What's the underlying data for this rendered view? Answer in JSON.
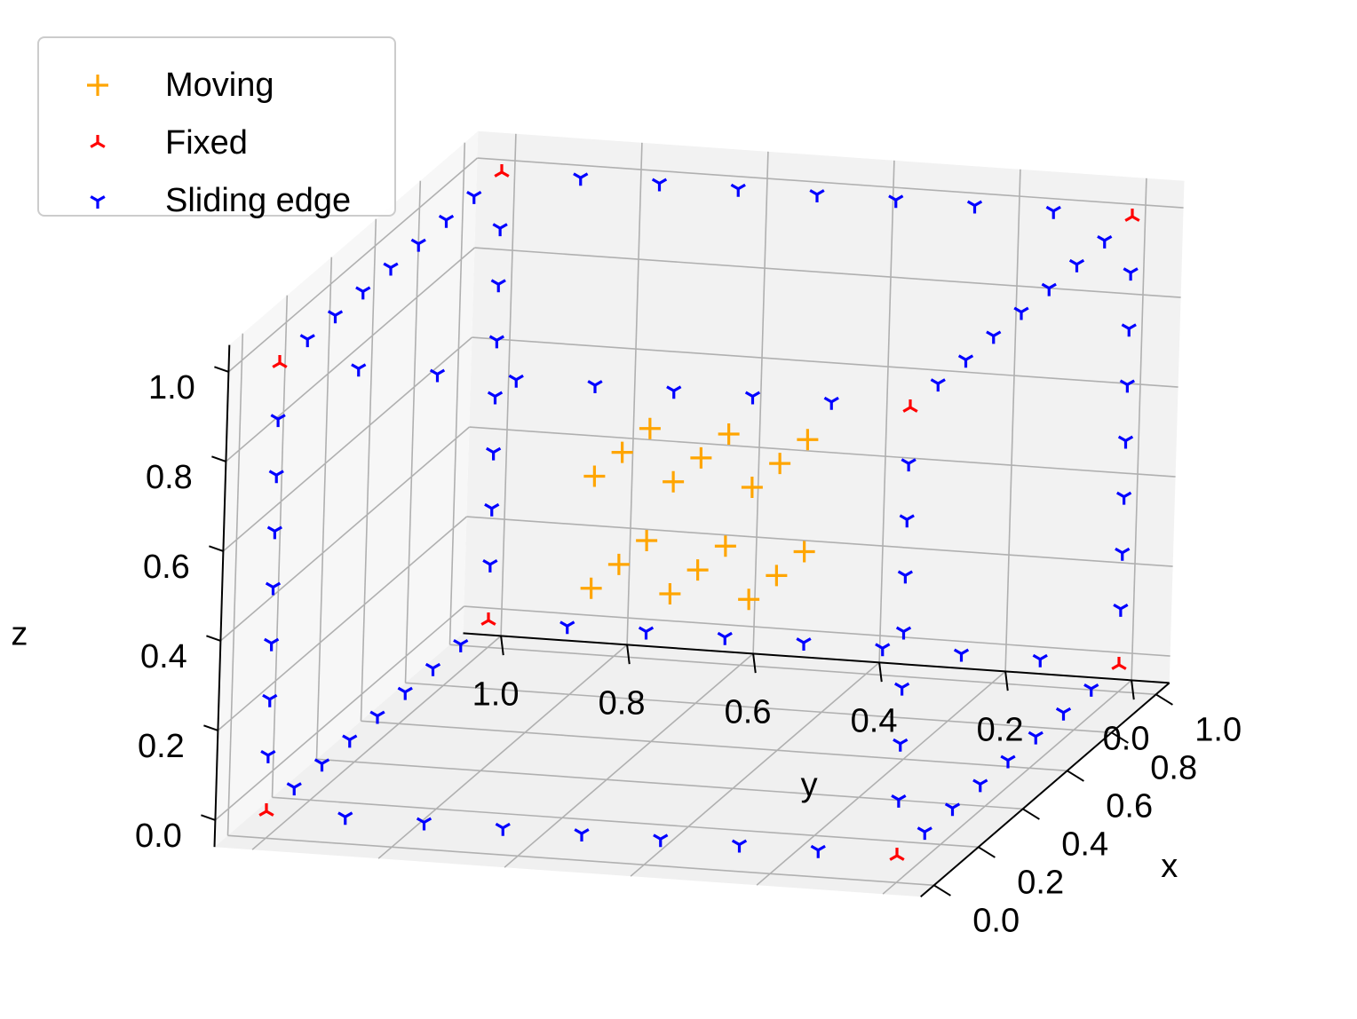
{
  "chart_data": {
    "type": "scatter",
    "projection": "3d",
    "grid": true,
    "legend_position": "top-left",
    "xlabel": "x",
    "ylabel": "y",
    "zlabel": "z",
    "xlim": [
      0,
      1
    ],
    "ylim": [
      0,
      1
    ],
    "zlim": [
      0,
      1
    ],
    "x_ticks": [
      "0.0",
      "0.2",
      "0.4",
      "0.6",
      "0.8",
      "1.0"
    ],
    "y_ticks": [
      "0.0",
      "0.2",
      "0.4",
      "0.6",
      "0.8",
      "1.0"
    ],
    "z_ticks": [
      "0.0",
      "0.2",
      "0.4",
      "0.6",
      "0.8",
      "1.0"
    ],
    "series": [
      {
        "name": "Moving",
        "marker": "plus",
        "color": "#ffa500",
        "points": [
          [
            0.375,
            0.375,
            0.625
          ],
          [
            0.5,
            0.375,
            0.625
          ],
          [
            0.625,
            0.375,
            0.625
          ],
          [
            0.375,
            0.5,
            0.625
          ],
          [
            0.5,
            0.5,
            0.625
          ],
          [
            0.625,
            0.5,
            0.625
          ],
          [
            0.375,
            0.625,
            0.625
          ],
          [
            0.5,
            0.625,
            0.625
          ],
          [
            0.625,
            0.625,
            0.625
          ],
          [
            0.375,
            0.375,
            0.375
          ],
          [
            0.5,
            0.375,
            0.375
          ],
          [
            0.625,
            0.375,
            0.375
          ],
          [
            0.375,
            0.5,
            0.375
          ],
          [
            0.5,
            0.5,
            0.375
          ],
          [
            0.625,
            0.5,
            0.375
          ],
          [
            0.375,
            0.625,
            0.375
          ],
          [
            0.5,
            0.625,
            0.375
          ],
          [
            0.625,
            0.625,
            0.375
          ]
        ]
      },
      {
        "name": "Fixed",
        "marker": "tri_up",
        "color": "#ff0000",
        "points": [
          [
            0,
            0,
            0
          ],
          [
            1,
            0,
            0
          ],
          [
            0,
            1,
            0
          ],
          [
            1,
            1,
            0
          ],
          [
            0,
            0,
            1
          ],
          [
            1,
            0,
            1
          ],
          [
            0,
            1,
            1
          ],
          [
            1,
            1,
            1
          ]
        ]
      },
      {
        "name": "Sliding edge",
        "marker": "tri_down",
        "color": "#0000ff",
        "points": [
          [
            0,
            0.125,
            0
          ],
          [
            0,
            0.25,
            0
          ],
          [
            0,
            0.375,
            0
          ],
          [
            0,
            0.5,
            0
          ],
          [
            0,
            0.625,
            0
          ],
          [
            0,
            0.75,
            0
          ],
          [
            0,
            0.875,
            0
          ],
          [
            1,
            0.125,
            0
          ],
          [
            1,
            0.25,
            0
          ],
          [
            1,
            0.375,
            0
          ],
          [
            1,
            0.5,
            0
          ],
          [
            1,
            0.625,
            0
          ],
          [
            1,
            0.75,
            0
          ],
          [
            1,
            0.875,
            0
          ],
          [
            0,
            0.125,
            1
          ],
          [
            0,
            0.25,
            1
          ],
          [
            0,
            0.375,
            1
          ],
          [
            0,
            0.5,
            1
          ],
          [
            0,
            0.625,
            1
          ],
          [
            0,
            0.75,
            1
          ],
          [
            0,
            0.875,
            1
          ],
          [
            1,
            0.125,
            1
          ],
          [
            1,
            0.25,
            1
          ],
          [
            1,
            0.375,
            1
          ],
          [
            1,
            0.5,
            1
          ],
          [
            1,
            0.625,
            1
          ],
          [
            1,
            0.75,
            1
          ],
          [
            1,
            0.875,
            1
          ],
          [
            0.125,
            0,
            0
          ],
          [
            0.25,
            0,
            0
          ],
          [
            0.375,
            0,
            0
          ],
          [
            0.5,
            0,
            0
          ],
          [
            0.625,
            0,
            0
          ],
          [
            0.75,
            0,
            0
          ],
          [
            0.875,
            0,
            0
          ],
          [
            0.125,
            1,
            0
          ],
          [
            0.25,
            1,
            0
          ],
          [
            0.375,
            1,
            0
          ],
          [
            0.5,
            1,
            0
          ],
          [
            0.625,
            1,
            0
          ],
          [
            0.75,
            1,
            0
          ],
          [
            0.875,
            1,
            0
          ],
          [
            0.125,
            0,
            1
          ],
          [
            0.25,
            0,
            1
          ],
          [
            0.375,
            0,
            1
          ],
          [
            0.5,
            0,
            1
          ],
          [
            0.625,
            0,
            1
          ],
          [
            0.75,
            0,
            1
          ],
          [
            0.875,
            0,
            1
          ],
          [
            0.125,
            1,
            1
          ],
          [
            0.25,
            1,
            1
          ],
          [
            0.375,
            1,
            1
          ],
          [
            0.5,
            1,
            1
          ],
          [
            0.625,
            1,
            1
          ],
          [
            0.75,
            1,
            1
          ],
          [
            0.875,
            1,
            1
          ],
          [
            0,
            0,
            0.125
          ],
          [
            0,
            0,
            0.25
          ],
          [
            0,
            0,
            0.375
          ],
          [
            0,
            0,
            0.5
          ],
          [
            0,
            0,
            0.625
          ],
          [
            0,
            0,
            0.75
          ],
          [
            0,
            0,
            0.875
          ],
          [
            1,
            0,
            0.125
          ],
          [
            1,
            0,
            0.25
          ],
          [
            1,
            0,
            0.375
          ],
          [
            1,
            0,
            0.5
          ],
          [
            1,
            0,
            0.625
          ],
          [
            1,
            0,
            0.75
          ],
          [
            1,
            0,
            0.875
          ],
          [
            0,
            1,
            0.125
          ],
          [
            0,
            1,
            0.25
          ],
          [
            0,
            1,
            0.375
          ],
          [
            0,
            1,
            0.5
          ],
          [
            0,
            1,
            0.625
          ],
          [
            0,
            1,
            0.75
          ],
          [
            0,
            1,
            0.875
          ],
          [
            1,
            1,
            0.125
          ],
          [
            1,
            1,
            0.25
          ],
          [
            1,
            1,
            0.375
          ],
          [
            1,
            1,
            0.5
          ],
          [
            1,
            1,
            0.625
          ],
          [
            1,
            1,
            0.75
          ],
          [
            1,
            1,
            0.875
          ]
        ]
      }
    ]
  },
  "legend": {
    "items": [
      {
        "label": "Moving",
        "marker": "plus",
        "color": "#ffa500"
      },
      {
        "label": "Fixed",
        "marker": "tri_up",
        "color": "#ff0000"
      },
      {
        "label": "Sliding edge",
        "marker": "tri_down",
        "color": "#0000ff"
      }
    ]
  },
  "colors": {
    "pane_back": "#f2f2f2",
    "pane_side": "#f7f7f7",
    "pane_floor": "#f0f0f0",
    "grid": "#b0b0b0",
    "axis_line": "#000000"
  }
}
